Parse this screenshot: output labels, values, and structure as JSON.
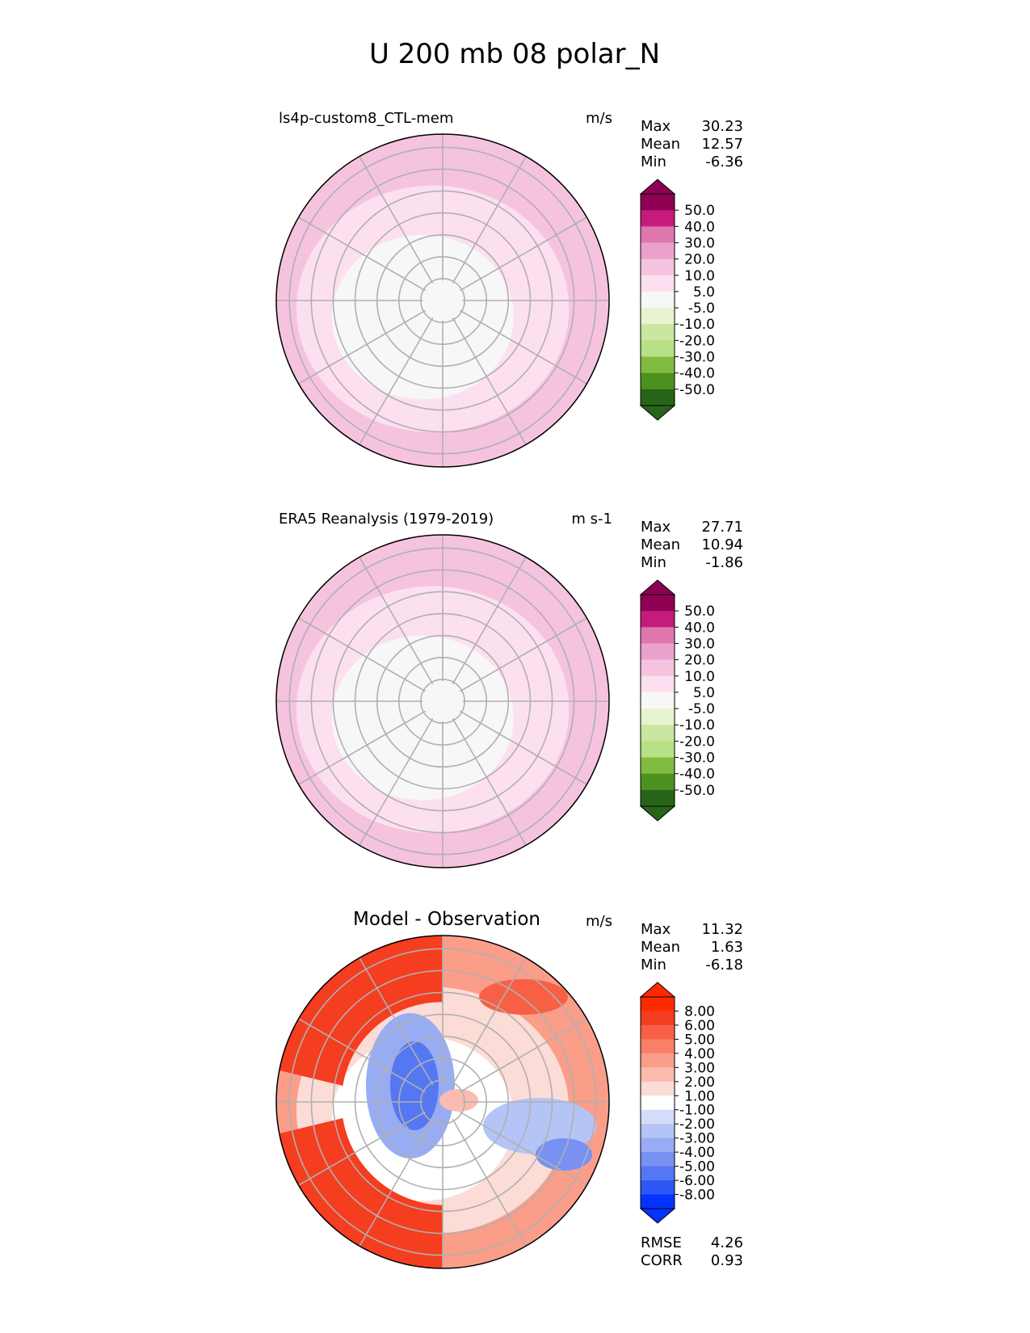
{
  "figure_title": "U 200 mb 08 polar_N",
  "chart_data": [
    {
      "type": "heatmap",
      "projection": "north-polar-stereographic",
      "title": "ls4p-custom8_CTL-mem",
      "units": "m/s",
      "stats": [
        {
          "label": "Max",
          "value": "30.23"
        },
        {
          "label": "Mean",
          "value": "12.57"
        },
        {
          "label": "Min",
          "value": "-6.36"
        }
      ],
      "colorbar": {
        "extend": "both",
        "levels": [
          -60,
          -50,
          -40,
          -30,
          -20,
          -10,
          -5,
          5,
          10,
          20,
          30,
          40,
          50,
          60
        ],
        "tick_labels": [
          "50.0",
          "40.0",
          "30.0",
          "20.0",
          "10.0",
          "5.0",
          "-5.0",
          "-10.0",
          "-20.0",
          "-30.0",
          "-40.0",
          "-50.0"
        ],
        "colors": [
          "#276419",
          "#4d9221",
          "#7fbc41",
          "#b8e186",
          "#c9e7a0",
          "#e6f5d0",
          "#f7f7f7",
          "#fde0ef",
          "#f6c3df",
          "#eaa2cc",
          "#de77ae",
          "#c51b7d",
          "#8e0152"
        ],
        "under_color": "#276419",
        "over_color": "#8e0152"
      },
      "field_bands": [
        {
          "level": "10-20",
          "color": "#f6c3df"
        },
        {
          "level": "5-10",
          "color": "#fde0ef"
        },
        {
          "level": "-5-5",
          "color": "#f7f7f7"
        }
      ]
    },
    {
      "type": "heatmap",
      "projection": "north-polar-stereographic",
      "title": "ERA5 Reanalysis (1979-2019)",
      "units": "m s-1",
      "stats": [
        {
          "label": "Max",
          "value": "27.71"
        },
        {
          "label": "Mean",
          "value": "10.94"
        },
        {
          "label": "Min",
          "value": "-1.86"
        }
      ],
      "colorbar": {
        "extend": "both",
        "levels": [
          -60,
          -50,
          -40,
          -30,
          -20,
          -10,
          -5,
          5,
          10,
          20,
          30,
          40,
          50,
          60
        ],
        "tick_labels": [
          "50.0",
          "40.0",
          "30.0",
          "20.0",
          "10.0",
          "5.0",
          "-5.0",
          "-10.0",
          "-20.0",
          "-30.0",
          "-40.0",
          "-50.0"
        ],
        "colors": [
          "#276419",
          "#4d9221",
          "#7fbc41",
          "#b8e186",
          "#c9e7a0",
          "#e6f5d0",
          "#f7f7f7",
          "#fde0ef",
          "#f6c3df",
          "#eaa2cc",
          "#de77ae",
          "#c51b7d",
          "#8e0152"
        ],
        "under_color": "#276419",
        "over_color": "#8e0152"
      },
      "field_bands": [
        {
          "level": "10-20",
          "color": "#f6c3df"
        },
        {
          "level": "5-10",
          "color": "#fde0ef"
        },
        {
          "level": "-5-5",
          "color": "#f7f7f7"
        }
      ]
    },
    {
      "type": "heatmap",
      "projection": "north-polar-stereographic",
      "title": "Model - Observation",
      "units": "m/s",
      "stats": [
        {
          "label": "Max",
          "value": "11.32"
        },
        {
          "label": "Mean",
          "value": "1.63"
        },
        {
          "label": "Min",
          "value": "-6.18"
        }
      ],
      "footer_stats": [
        {
          "label": "RMSE",
          "value": "4.26"
        },
        {
          "label": "CORR",
          "value": "0.93"
        }
      ],
      "colorbar": {
        "extend": "both",
        "levels": [
          -10,
          -8,
          -6,
          -5,
          -4,
          -3,
          -2,
          -1,
          1,
          2,
          3,
          4,
          5,
          6,
          8,
          10
        ],
        "tick_labels": [
          "8.00",
          "6.00",
          "5.00",
          "4.00",
          "3.00",
          "2.00",
          "1.00",
          "-1.00",
          "-2.00",
          "-3.00",
          "-4.00",
          "-5.00",
          "-6.00",
          "-8.00"
        ],
        "colors": [
          "#0433ff",
          "#2e55f5",
          "#5577f2",
          "#7891f2",
          "#98acf3",
          "#b5c4f6",
          "#d4dcfa",
          "#ffffff",
          "#fcdcd6",
          "#fbbcaf",
          "#fa9e8a",
          "#f97f66",
          "#f76045",
          "#f53d20",
          "#ff2b00"
        ],
        "under_color": "#0433ff",
        "over_color": "#ff2b00"
      },
      "field_bands": [
        {
          "level": "3-6",
          "color": "#fa9e8a"
        },
        {
          "level": "1-3",
          "color": "#fcdcd6"
        },
        {
          "level": "-1-1",
          "color": "#ffffff"
        }
      ]
    }
  ]
}
